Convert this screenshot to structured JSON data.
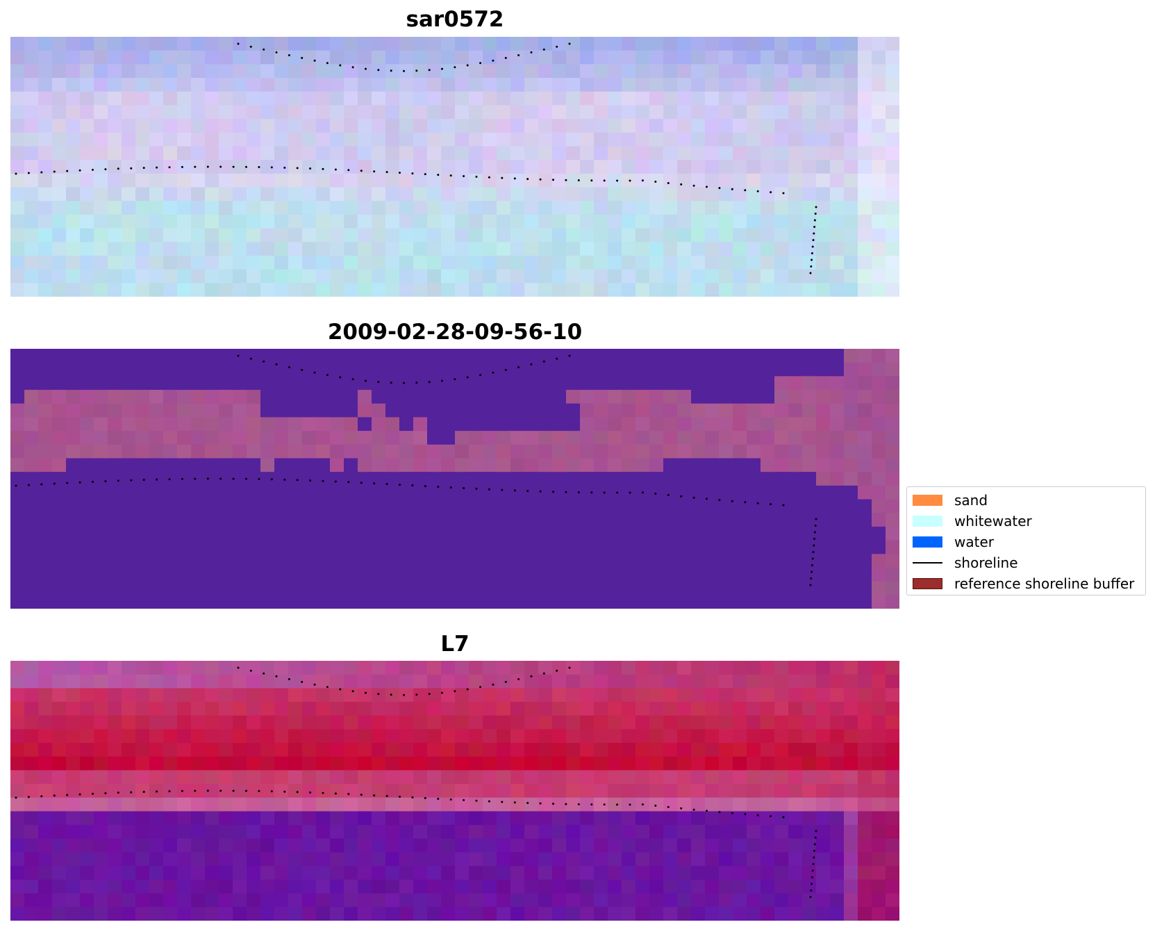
{
  "panels": [
    {
      "title": "sar0572",
      "style": "rgb"
    },
    {
      "title": "2009-02-28-09-56-10",
      "style": "classified"
    },
    {
      "title": "L7",
      "style": "ndwi"
    }
  ],
  "legend": {
    "items": [
      {
        "label": "sand",
        "kind": "patch",
        "color": "#ff8c3f"
      },
      {
        "label": "whitewater",
        "kind": "patch",
        "color": "#c8ffff"
      },
      {
        "label": "water",
        "kind": "patch",
        "color": "#0064ff"
      },
      {
        "label": "shoreline",
        "kind": "line",
        "color": "#000000"
      },
      {
        "label": "reference shoreline buffer",
        "kind": "patch",
        "color": "#9b2d2d",
        "edge": "#5a1010"
      }
    ]
  },
  "colors": {
    "classified_water": "#54229b",
    "classified_land": "#a85590",
    "rgb_sky": "#a8b0e6",
    "rgb_land": "#c4d8ee",
    "ndwi_land": "#c41a4a",
    "ndwi_water": "#6a15a0",
    "shoreline_points": "#000000"
  }
}
